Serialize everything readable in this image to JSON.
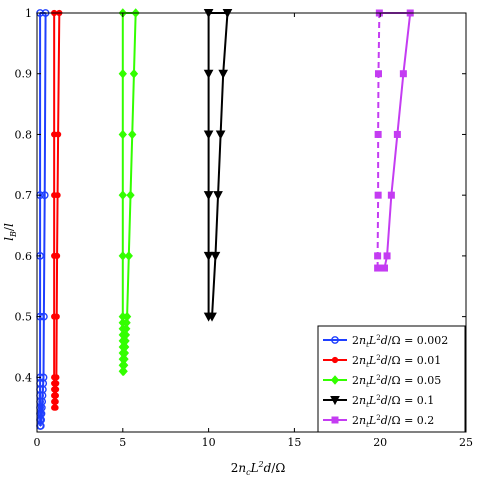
{
  "chart_data": {
    "type": "line",
    "xlabel": "2n_c L^2 d/Ω",
    "ylabel": "l_B / l",
    "xlim": [
      0,
      25
    ],
    "ylim": [
      0.31,
      1.0
    ],
    "xticks": [
      "0",
      "5",
      "10",
      "15",
      "20",
      "25"
    ],
    "xtick_values": [
      0,
      5,
      10,
      15,
      20,
      25
    ],
    "yticks": [
      "0.4",
      "0.5",
      "0.6",
      "0.7",
      "0.8",
      "0.9",
      "1"
    ],
    "ytick_values": [
      0.4,
      0.5,
      0.6,
      0.7,
      0.8,
      0.9,
      1.0
    ],
    "grid": false,
    "legend_position": "bottom-right",
    "series": [
      {
        "name": "2n_t L^2 d/Ω = 0.002",
        "color": "#1f3fff",
        "marker": "circle",
        "branches": [
          {
            "x": [
              0.18,
              0.18,
              0.18,
              0.18,
              0.18,
              0.18,
              0.18,
              0.18,
              0.18,
              0.18,
              0.18,
              0.18,
              0.18
            ],
            "y": [
              0.32,
              0.33,
              0.34,
              0.35,
              0.36,
              0.37,
              0.38,
              0.39,
              0.4,
              0.5,
              0.6,
              0.7,
              1.0
            ]
          },
          {
            "x": [
              0.22,
              0.24,
              0.26,
              0.28,
              0.3,
              0.32,
              0.34,
              0.36,
              0.38,
              0.4,
              0.45,
              0.5
            ],
            "y": [
              0.32,
              0.33,
              0.34,
              0.35,
              0.36,
              0.37,
              0.38,
              0.39,
              0.4,
              0.5,
              0.7,
              1.0
            ]
          }
        ]
      },
      {
        "name": "2n_t L^2 d/Ω = 0.01",
        "color": "#ff0000",
        "marker": "dot",
        "branches": [
          {
            "x": [
              1.0,
              1.0,
              1.0,
              1.0,
              1.0,
              1.0,
              1.0,
              1.0,
              1.0,
              1.0,
              1.0
            ],
            "y": [
              0.35,
              0.36,
              0.37,
              0.38,
              0.39,
              0.4,
              0.5,
              0.6,
              0.7,
              0.8,
              1.0
            ]
          },
          {
            "x": [
              1.08,
              1.09,
              1.1,
              1.11,
              1.12,
              1.13,
              1.15,
              1.17,
              1.2,
              1.23,
              1.3
            ],
            "y": [
              0.35,
              0.36,
              0.37,
              0.38,
              0.39,
              0.4,
              0.5,
              0.6,
              0.7,
              0.8,
              1.0
            ]
          }
        ]
      },
      {
        "name": "2n_t L^2 d/Ω = 0.05",
        "color": "#33ff00",
        "marker": "diamond",
        "branches": [
          {
            "x": [
              5.0,
              5.0,
              5.0,
              5.0,
              5.0,
              5.0,
              5.0,
              5.0,
              5.0,
              5.0,
              5.0,
              5.0,
              5.0,
              5.0,
              5.0
            ],
            "y": [
              0.41,
              0.42,
              0.43,
              0.44,
              0.45,
              0.46,
              0.47,
              0.48,
              0.49,
              0.5,
              0.6,
              0.7,
              0.8,
              0.9,
              1.0
            ]
          },
          {
            "x": [
              5.05,
              5.08,
              5.1,
              5.12,
              5.14,
              5.16,
              5.18,
              5.2,
              5.22,
              5.25,
              5.35,
              5.45,
              5.55,
              5.65,
              5.75
            ],
            "y": [
              0.41,
              0.42,
              0.43,
              0.44,
              0.45,
              0.46,
              0.47,
              0.48,
              0.49,
              0.5,
              0.6,
              0.7,
              0.8,
              0.9,
              1.0
            ]
          }
        ]
      },
      {
        "name": "2n_t L^2 d/Ω = 0.1",
        "color": "#000000",
        "marker": "triangle-down",
        "branches": [
          {
            "x": [
              10.0,
              10.0,
              10.0,
              10.0,
              10.0,
              10.0
            ],
            "y": [
              0.5,
              0.6,
              0.7,
              0.8,
              0.9,
              1.0
            ]
          },
          {
            "x": [
              10.2,
              10.4,
              10.55,
              10.7,
              10.85,
              11.1
            ],
            "y": [
              0.5,
              0.6,
              0.7,
              0.8,
              0.9,
              1.0
            ]
          }
        ]
      },
      {
        "name": "2n_t L^2 d/Ω = 0.2",
        "color": "#c43cf2",
        "marker": "square",
        "dashed_left": true,
        "branches": [
          {
            "x": [
              19.85,
              19.85,
              19.88,
              19.88,
              19.9,
              19.95
            ],
            "y": [
              0.58,
              0.6,
              0.7,
              0.8,
              0.9,
              1.0
            ]
          },
          {
            "x": [
              20.25,
              20.4,
              20.65,
              21.0,
              21.35,
              21.75
            ],
            "y": [
              0.58,
              0.6,
              0.7,
              0.8,
              0.9,
              1.0
            ]
          }
        ]
      }
    ]
  }
}
